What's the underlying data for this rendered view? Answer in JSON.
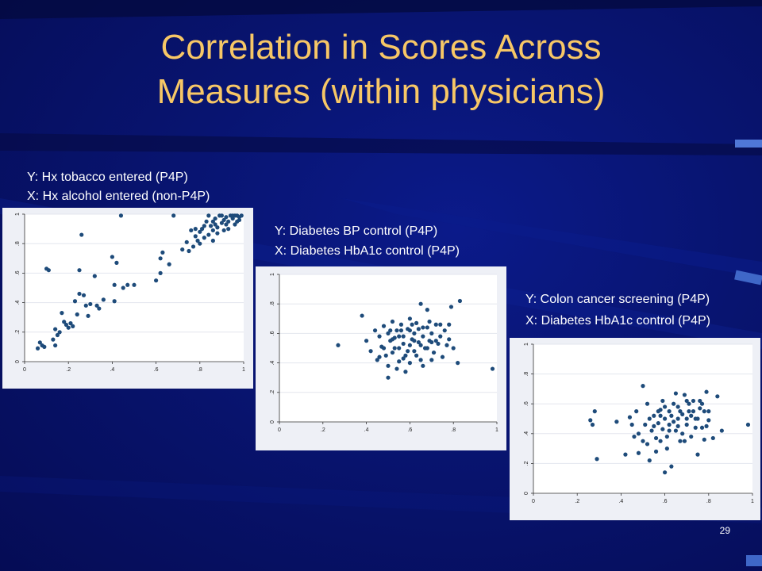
{
  "slide": {
    "title_line1": "Correlation in Scores Across",
    "title_line2": "Measures (within physicians)",
    "page_number": "29"
  },
  "colors": {
    "title": "#f7c766",
    "background": "#081470",
    "point": "#1e4b7a",
    "panel": "#eef0f6",
    "plot_area": "#ffffff"
  },
  "chart_data": [
    {
      "type": "scatter",
      "caption_y": "Y: Hx tobacco entered (P4P)",
      "caption_x": "X: Hx alcohol entered (non-P4P)",
      "xlim": [
        0,
        1
      ],
      "ylim": [
        0,
        1
      ],
      "xticks": [
        "0",
        ".2",
        ".4",
        ".6",
        ".8",
        "1"
      ],
      "yticks": [
        "0",
        ".2",
        ".4",
        ".6",
        ".8",
        "1"
      ],
      "grid": true,
      "points": [
        [
          0.07,
          0.13
        ],
        [
          0.08,
          0.11
        ],
        [
          0.09,
          0.1
        ],
        [
          0.06,
          0.09
        ],
        [
          0.1,
          0.63
        ],
        [
          0.11,
          0.62
        ],
        [
          0.13,
          0.15
        ],
        [
          0.14,
          0.11
        ],
        [
          0.14,
          0.22
        ],
        [
          0.15,
          0.18
        ],
        [
          0.16,
          0.2
        ],
        [
          0.17,
          0.33
        ],
        [
          0.18,
          0.27
        ],
        [
          0.19,
          0.25
        ],
        [
          0.2,
          0.23
        ],
        [
          0.21,
          0.26
        ],
        [
          0.22,
          0.24
        ],
        [
          0.23,
          0.41
        ],
        [
          0.24,
          0.32
        ],
        [
          0.25,
          0.46
        ],
        [
          0.25,
          0.62
        ],
        [
          0.26,
          0.86
        ],
        [
          0.27,
          0.45
        ],
        [
          0.28,
          0.38
        ],
        [
          0.29,
          0.31
        ],
        [
          0.3,
          0.39
        ],
        [
          0.32,
          0.58
        ],
        [
          0.33,
          0.38
        ],
        [
          0.34,
          0.36
        ],
        [
          0.36,
          0.42
        ],
        [
          0.4,
          0.71
        ],
        [
          0.41,
          0.52
        ],
        [
          0.41,
          0.41
        ],
        [
          0.42,
          0.67
        ],
        [
          0.44,
          0.99
        ],
        [
          0.45,
          0.5
        ],
        [
          0.47,
          0.52
        ],
        [
          0.5,
          0.52
        ],
        [
          0.6,
          0.55
        ],
        [
          0.62,
          0.7
        ],
        [
          0.63,
          0.74
        ],
        [
          0.62,
          0.6
        ],
        [
          0.66,
          0.66
        ],
        [
          0.68,
          0.99
        ],
        [
          0.72,
          0.76
        ],
        [
          0.74,
          0.81
        ],
        [
          0.75,
          0.75
        ],
        [
          0.76,
          0.89
        ],
        [
          0.77,
          0.78
        ],
        [
          0.78,
          0.85
        ],
        [
          0.79,
          0.82
        ],
        [
          0.8,
          0.88
        ],
        [
          0.81,
          0.9
        ],
        [
          0.82,
          0.84
        ],
        [
          0.83,
          0.95
        ],
        [
          0.84,
          0.86
        ],
        [
          0.85,
          0.92
        ],
        [
          0.86,
          0.89
        ],
        [
          0.87,
          0.97
        ],
        [
          0.88,
          0.91
        ],
        [
          0.89,
          0.99
        ],
        [
          0.9,
          0.94
        ],
        [
          0.91,
          0.96
        ],
        [
          0.92,
          0.98
        ],
        [
          0.93,
          0.9
        ],
        [
          0.94,
          0.99
        ],
        [
          0.95,
          0.97
        ],
        [
          0.96,
          0.93
        ],
        [
          0.97,
          0.99
        ],
        [
          0.98,
          0.96
        ],
        [
          0.99,
          0.99
        ],
        [
          0.86,
          0.95
        ],
        [
          0.88,
          0.87
        ],
        [
          0.9,
          0.99
        ],
        [
          0.93,
          0.95
        ],
        [
          0.95,
          0.99
        ],
        [
          0.97,
          0.95
        ],
        [
          0.8,
          0.8
        ],
        [
          0.78,
          0.9
        ],
        [
          0.82,
          0.92
        ],
        [
          0.84,
          0.99
        ],
        [
          0.86,
          0.82
        ],
        [
          0.92,
          0.93
        ],
        [
          0.96,
          0.99
        ],
        [
          0.98,
          0.98
        ],
        [
          0.91,
          0.89
        ],
        [
          0.87,
          0.93
        ]
      ]
    },
    {
      "type": "scatter",
      "caption_y": "Y: Diabetes BP control (P4P)",
      "caption_x": "X: Diabetes HbA1c control (P4P)",
      "xlim": [
        0,
        1
      ],
      "ylim": [
        0,
        1
      ],
      "xticks": [
        "0",
        ".2",
        ".4",
        ".6",
        ".8",
        "1"
      ],
      "yticks": [
        "0",
        ".2",
        ".4",
        ".6",
        ".8",
        "1"
      ],
      "grid": true,
      "points": [
        [
          0.27,
          0.52
        ],
        [
          0.38,
          0.72
        ],
        [
          0.4,
          0.55
        ],
        [
          0.42,
          0.48
        ],
        [
          0.44,
          0.62
        ],
        [
          0.45,
          0.42
        ],
        [
          0.46,
          0.58
        ],
        [
          0.47,
          0.51
        ],
        [
          0.48,
          0.65
        ],
        [
          0.49,
          0.45
        ],
        [
          0.5,
          0.6
        ],
        [
          0.5,
          0.38
        ],
        [
          0.51,
          0.55
        ],
        [
          0.52,
          0.68
        ],
        [
          0.52,
          0.47
        ],
        [
          0.53,
          0.57
        ],
        [
          0.54,
          0.62
        ],
        [
          0.55,
          0.5
        ],
        [
          0.55,
          0.41
        ],
        [
          0.56,
          0.66
        ],
        [
          0.57,
          0.53
        ],
        [
          0.57,
          0.58
        ],
        [
          0.58,
          0.45
        ],
        [
          0.59,
          0.63
        ],
        [
          0.6,
          0.52
        ],
        [
          0.6,
          0.7
        ],
        [
          0.61,
          0.56
        ],
        [
          0.62,
          0.48
        ],
        [
          0.62,
          0.6
        ],
        [
          0.63,
          0.67
        ],
        [
          0.64,
          0.54
        ],
        [
          0.65,
          0.42
        ],
        [
          0.65,
          0.8
        ],
        [
          0.66,
          0.58
        ],
        [
          0.67,
          0.5
        ],
        [
          0.68,
          0.64
        ],
        [
          0.68,
          0.76
        ],
        [
          0.69,
          0.55
        ],
        [
          0.7,
          0.6
        ],
        [
          0.71,
          0.47
        ],
        [
          0.72,
          0.66
        ],
        [
          0.73,
          0.53
        ],
        [
          0.74,
          0.58
        ],
        [
          0.75,
          0.44
        ],
        [
          0.76,
          0.62
        ],
        [
          0.77,
          0.52
        ],
        [
          0.78,
          0.66
        ],
        [
          0.79,
          0.78
        ],
        [
          0.8,
          0.5
        ],
        [
          0.82,
          0.4
        ],
        [
          0.83,
          0.82
        ],
        [
          0.98,
          0.36
        ],
        [
          0.5,
          0.3
        ],
        [
          0.54,
          0.36
        ],
        [
          0.58,
          0.34
        ],
        [
          0.6,
          0.4
        ],
        [
          0.63,
          0.45
        ],
        [
          0.66,
          0.38
        ],
        [
          0.7,
          0.42
        ],
        [
          0.72,
          0.55
        ],
        [
          0.56,
          0.62
        ],
        [
          0.52,
          0.56
        ],
        [
          0.48,
          0.5
        ],
        [
          0.46,
          0.44
        ],
        [
          0.59,
          0.48
        ],
        [
          0.64,
          0.63
        ],
        [
          0.68,
          0.5
        ],
        [
          0.74,
          0.66
        ],
        [
          0.61,
          0.66
        ],
        [
          0.57,
          0.43
        ],
        [
          0.53,
          0.5
        ],
        [
          0.62,
          0.55
        ],
        [
          0.66,
          0.64
        ],
        [
          0.7,
          0.54
        ],
        [
          0.78,
          0.56
        ],
        [
          0.51,
          0.62
        ],
        [
          0.55,
          0.58
        ],
        [
          0.6,
          0.62
        ],
        [
          0.65,
          0.52
        ],
        [
          0.69,
          0.68
        ]
      ]
    },
    {
      "type": "scatter",
      "caption_y": "Y: Colon cancer screening (P4P)",
      "caption_x": "X: Diabetes HbA1c control (P4P)",
      "xlim": [
        0,
        1
      ],
      "ylim": [
        0,
        1
      ],
      "xticks": [
        "0",
        ".2",
        ".4",
        ".6",
        ".8",
        "1"
      ],
      "yticks": [
        "0",
        ".2",
        ".4",
        ".6",
        ".8",
        "1"
      ],
      "grid": true,
      "points": [
        [
          0.26,
          0.49
        ],
        [
          0.27,
          0.46
        ],
        [
          0.28,
          0.55
        ],
        [
          0.29,
          0.23
        ],
        [
          0.38,
          0.48
        ],
        [
          0.42,
          0.26
        ],
        [
          0.45,
          0.46
        ],
        [
          0.46,
          0.38
        ],
        [
          0.47,
          0.55
        ],
        [
          0.48,
          0.27
        ],
        [
          0.5,
          0.72
        ],
        [
          0.5,
          0.35
        ],
        [
          0.51,
          0.46
        ],
        [
          0.52,
          0.6
        ],
        [
          0.53,
          0.22
        ],
        [
          0.54,
          0.42
        ],
        [
          0.55,
          0.52
        ],
        [
          0.56,
          0.28
        ],
        [
          0.57,
          0.47
        ],
        [
          0.58,
          0.56
        ],
        [
          0.58,
          0.35
        ],
        [
          0.59,
          0.43
        ],
        [
          0.6,
          0.5
        ],
        [
          0.6,
          0.14
        ],
        [
          0.61,
          0.38
        ],
        [
          0.62,
          0.55
        ],
        [
          0.62,
          0.46
        ],
        [
          0.63,
          0.18
        ],
        [
          0.64,
          0.6
        ],
        [
          0.65,
          0.42
        ],
        [
          0.65,
          0.67
        ],
        [
          0.66,
          0.5
        ],
        [
          0.67,
          0.35
        ],
        [
          0.68,
          0.53
        ],
        [
          0.69,
          0.66
        ],
        [
          0.7,
          0.46
        ],
        [
          0.71,
          0.55
        ],
        [
          0.72,
          0.38
        ],
        [
          0.73,
          0.62
        ],
        [
          0.74,
          0.5
        ],
        [
          0.75,
          0.26
        ],
        [
          0.76,
          0.57
        ],
        [
          0.77,
          0.44
        ],
        [
          0.78,
          0.55
        ],
        [
          0.79,
          0.68
        ],
        [
          0.8,
          0.49
        ],
        [
          0.82,
          0.37
        ],
        [
          0.84,
          0.65
        ],
        [
          0.86,
          0.42
        ],
        [
          0.98,
          0.46
        ],
        [
          0.44,
          0.51
        ],
        [
          0.48,
          0.4
        ],
        [
          0.52,
          0.33
        ],
        [
          0.55,
          0.45
        ],
        [
          0.58,
          0.52
        ],
        [
          0.61,
          0.3
        ],
        [
          0.63,
          0.52
        ],
        [
          0.66,
          0.58
        ],
        [
          0.68,
          0.4
        ],
        [
          0.7,
          0.62
        ],
        [
          0.72,
          0.52
        ],
        [
          0.74,
          0.44
        ],
        [
          0.76,
          0.62
        ],
        [
          0.78,
          0.36
        ],
        [
          0.8,
          0.55
        ],
        [
          0.57,
          0.55
        ],
        [
          0.6,
          0.58
        ],
        [
          0.64,
          0.48
        ],
        [
          0.67,
          0.55
        ],
        [
          0.7,
          0.5
        ],
        [
          0.73,
          0.55
        ],
        [
          0.77,
          0.6
        ],
        [
          0.53,
          0.5
        ],
        [
          0.56,
          0.37
        ],
        [
          0.59,
          0.62
        ],
        [
          0.62,
          0.42
        ],
        [
          0.66,
          0.45
        ],
        [
          0.69,
          0.35
        ],
        [
          0.71,
          0.6
        ],
        [
          0.75,
          0.5
        ],
        [
          0.79,
          0.45
        ]
      ]
    }
  ]
}
